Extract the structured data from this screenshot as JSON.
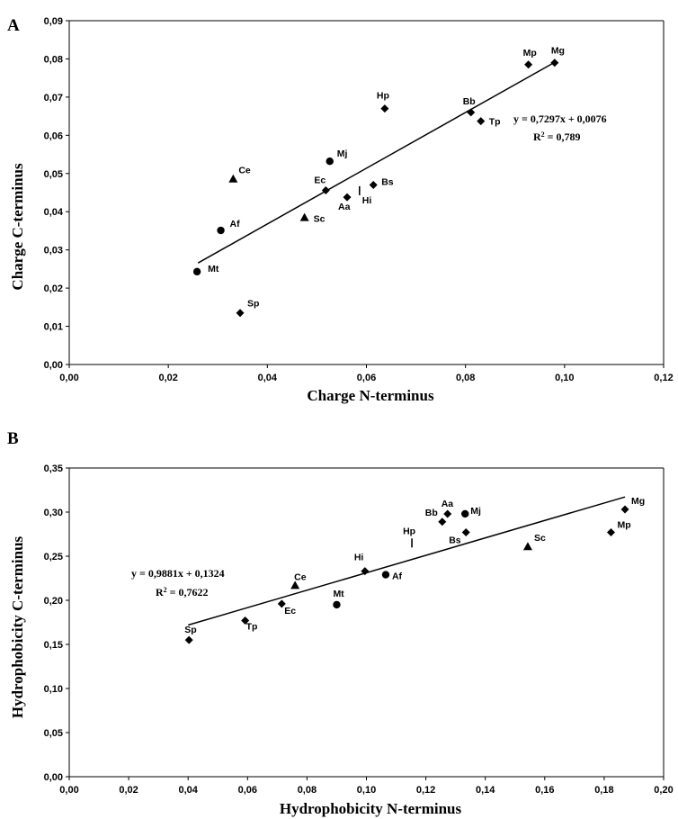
{
  "chart_data": [
    {
      "panel": "A",
      "type": "scatter",
      "title": "",
      "xlabel": "Charge N-terminus",
      "ylabel": "Charge C-terminus",
      "xlim": [
        0,
        0.12
      ],
      "ylim": [
        0,
        0.09
      ],
      "x_ticks": [
        "0,00",
        "0,02",
        "0,04",
        "0,06",
        "0,08",
        "0,10",
        "0,12"
      ],
      "y_ticks": [
        "0,00",
        "0,01",
        "0,02",
        "0,03",
        "0,04",
        "0,05",
        "0,06",
        "0,07",
        "0,08",
        "0,09"
      ],
      "trendline": {
        "slope": 0.7297,
        "intercept": 0.0076,
        "x_range": [
          0.026,
          0.098
        ]
      },
      "equation": "y = 0,7297x + 0,0076",
      "r2_label": "R",
      "r2_value": " = 0,789",
      "points": [
        {
          "label": "Mt",
          "x": 0.0258,
          "y": 0.0243,
          "marker": "circle"
        },
        {
          "label": "Af",
          "x": 0.0306,
          "y": 0.0351,
          "marker": "circle"
        },
        {
          "label": "Ce",
          "x": 0.0331,
          "y": 0.0486,
          "marker": "triangle"
        },
        {
          "label": "Sp",
          "x": 0.0345,
          "y": 0.0135,
          "marker": "diamond"
        },
        {
          "label": "Sc",
          "x": 0.0475,
          "y": 0.0385,
          "marker": "triangle"
        },
        {
          "label": "Ec",
          "x": 0.0518,
          "y": 0.0456,
          "marker": "diamond"
        },
        {
          "label": "Mj",
          "x": 0.0526,
          "y": 0.0532,
          "marker": "circle"
        },
        {
          "label": "Aa",
          "x": 0.0561,
          "y": 0.0438,
          "marker": "diamond"
        },
        {
          "label": "Hi",
          "x": 0.0586,
          "y": 0.0455,
          "marker": "bar"
        },
        {
          "label": "Bs",
          "x": 0.0614,
          "y": 0.047,
          "marker": "diamond"
        },
        {
          "label": "Hp",
          "x": 0.0637,
          "y": 0.067,
          "marker": "diamond"
        },
        {
          "label": "Bb",
          "x": 0.0811,
          "y": 0.066,
          "marker": "diamond"
        },
        {
          "label": "Tp",
          "x": 0.0831,
          "y": 0.0637,
          "marker": "diamond"
        },
        {
          "label": "Mp",
          "x": 0.0927,
          "y": 0.0785,
          "marker": "diamond"
        },
        {
          "label": "Mg",
          "x": 0.098,
          "y": 0.079,
          "marker": "diamond"
        }
      ]
    },
    {
      "panel": "B",
      "type": "scatter",
      "title": "",
      "xlabel": "Hydrophobicity N-terminus",
      "ylabel": "Hydrophobicity C-terminus",
      "xlim": [
        0,
        0.2
      ],
      "ylim": [
        0,
        0.35
      ],
      "x_ticks": [
        "0,00",
        "0,02",
        "0,04",
        "0,06",
        "0,08",
        "0,10",
        "0,12",
        "0,14",
        "0,16",
        "0,18",
        "0,20"
      ],
      "y_ticks": [
        "0,00",
        "0,05",
        "0,10",
        "0,15",
        "0,20",
        "0,25",
        "0,30",
        "0,35"
      ],
      "trendline": {
        "slope": 0.9881,
        "intercept": 0.1324,
        "x_range": [
          0.04,
          0.187
        ]
      },
      "equation": "y = 0,9881x + 0,1324",
      "r2_label": "R",
      "r2_value": " = 0,7622",
      "points": [
        {
          "label": "Sp",
          "x": 0.0403,
          "y": 0.155,
          "marker": "diamond"
        },
        {
          "label": "Tp",
          "x": 0.0592,
          "y": 0.177,
          "marker": "diamond"
        },
        {
          "label": "Ec",
          "x": 0.0715,
          "y": 0.196,
          "marker": "diamond"
        },
        {
          "label": "Ce",
          "x": 0.076,
          "y": 0.217,
          "marker": "triangle"
        },
        {
          "label": "Mt",
          "x": 0.09,
          "y": 0.195,
          "marker": "circle"
        },
        {
          "label": "Hi",
          "x": 0.0995,
          "y": 0.233,
          "marker": "diamond"
        },
        {
          "label": "Af",
          "x": 0.1065,
          "y": 0.229,
          "marker": "circle"
        },
        {
          "label": "Hp",
          "x": 0.1153,
          "y": 0.265,
          "marker": "bar"
        },
        {
          "label": "Bb",
          "x": 0.1255,
          "y": 0.289,
          "marker": "diamond"
        },
        {
          "label": "Aa",
          "x": 0.1273,
          "y": 0.298,
          "marker": "diamond"
        },
        {
          "label": "Bs",
          "x": 0.1335,
          "y": 0.277,
          "marker": "diamond"
        },
        {
          "label": "Mj",
          "x": 0.1332,
          "y": 0.298,
          "marker": "circle"
        },
        {
          "label": "Sc",
          "x": 0.1543,
          "y": 0.261,
          "marker": "triangle"
        },
        {
          "label": "Mp",
          "x": 0.1823,
          "y": 0.277,
          "marker": "diamond"
        },
        {
          "label": "Mg",
          "x": 0.187,
          "y": 0.303,
          "marker": "diamond"
        }
      ]
    }
  ]
}
